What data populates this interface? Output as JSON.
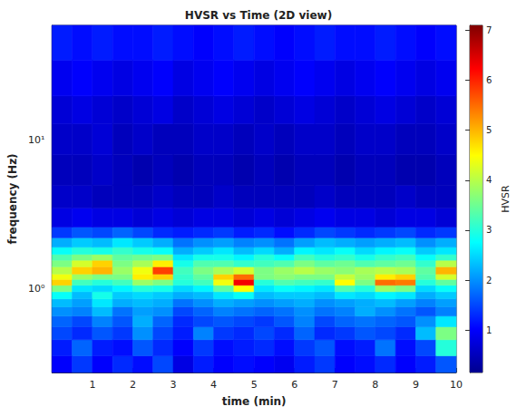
{
  "chart_data": {
    "type": "heatmap",
    "title": "HVSR vs Time (2D view)",
    "x_label": "time (min)",
    "y_label": "frequency (Hz)",
    "xlim": [
      0,
      10
    ],
    "xticks": [
      1,
      2,
      3,
      4,
      5,
      6,
      7,
      8,
      9,
      10
    ],
    "ylim": [
      0.27,
      60
    ],
    "yticks": [
      {
        "value": 1,
        "label": "10⁰"
      },
      {
        "value": 10,
        "label": "10¹"
      }
    ],
    "log": "y",
    "grid": false,
    "time_edges": [
      0,
      0.5,
      1,
      1.5,
      2,
      2.5,
      3,
      3.5,
      4,
      4.5,
      5,
      5.5,
      6,
      6.5,
      7,
      7.5,
      8,
      8.5,
      9,
      9.5,
      10
    ],
    "frequency_edges": [
      0.27,
      0.35,
      0.45,
      0.55,
      0.65,
      0.75,
      0.85,
      0.95,
      1.05,
      1.15,
      1.25,
      1.4,
      1.55,
      1.7,
      1.9,
      2.2,
      2.6,
      3.5,
      5,
      8,
      13,
      20,
      35,
      60
    ],
    "values": [
      [
        1.0,
        1.4,
        1.0,
        1.3,
        1.1,
        1.5,
        0.8,
        1.2,
        1.0,
        1.1,
        1.0,
        0.9,
        1.2,
        1.4,
        1.0,
        1.1,
        1.3,
        1.0,
        1.2,
        1.6
      ],
      [
        1.2,
        1.7,
        1.2,
        1.1,
        1.6,
        1.3,
        1.0,
        1.4,
        1.1,
        1.2,
        1.3,
        1.1,
        1.4,
        1.6,
        1.1,
        1.2,
        1.8,
        1.1,
        1.5,
        3.0
      ],
      [
        1.5,
        1.3,
        1.6,
        1.4,
        2.0,
        1.5,
        1.2,
        1.9,
        1.4,
        1.3,
        1.5,
        1.3,
        1.7,
        1.3,
        1.4,
        1.6,
        1.5,
        1.3,
        2.3,
        3.6
      ],
      [
        1.7,
        1.5,
        1.9,
        1.6,
        2.2,
        1.7,
        1.3,
        1.5,
        1.6,
        1.5,
        1.4,
        1.6,
        1.9,
        1.5,
        1.7,
        1.8,
        1.7,
        1.6,
        2.0,
        2.6
      ],
      [
        2.0,
        1.9,
        2.3,
        1.8,
        2.1,
        2.0,
        1.5,
        1.7,
        1.9,
        1.8,
        1.7,
        1.8,
        2.0,
        1.8,
        1.9,
        2.2,
        2.0,
        1.8,
        1.6,
        1.9
      ],
      [
        2.3,
        2.1,
        2.6,
        2.2,
        2.3,
        2.2,
        1.8,
        2.0,
        2.2,
        2.1,
        2.0,
        2.1,
        2.2,
        2.0,
        2.1,
        2.2,
        2.3,
        2.1,
        1.9,
        2.1
      ],
      [
        2.8,
        2.3,
        2.9,
        2.4,
        2.5,
        2.4,
        2.2,
        2.3,
        2.6,
        2.8,
        2.3,
        2.4,
        2.4,
        2.3,
        2.6,
        2.5,
        2.7,
        2.6,
        2.2,
        2.4
      ],
      [
        3.6,
        2.6,
        2.5,
        2.7,
        3.0,
        2.9,
        2.5,
        2.7,
        3.4,
        4.5,
        2.6,
        2.8,
        2.7,
        2.6,
        3.3,
        3.0,
        3.8,
        3.6,
        2.5,
        2.8
      ],
      [
        4.8,
        3.2,
        3.0,
        3.2,
        3.8,
        3.6,
        3.0,
        3.2,
        4.4,
        6.3,
        3.0,
        3.3,
        3.2,
        3.1,
        4.5,
        3.6,
        5.5,
        5.4,
        3.0,
        3.4
      ],
      [
        4.4,
        3.8,
        3.6,
        3.6,
        4.6,
        4.8,
        3.1,
        3.4,
        4.8,
        5.5,
        3.6,
        3.7,
        3.6,
        3.6,
        4.1,
        3.8,
        4.6,
        4.8,
        3.3,
        4.2
      ],
      [
        4.0,
        4.8,
        5.0,
        3.8,
        4.4,
        5.8,
        3.2,
        3.6,
        3.9,
        4.2,
        3.6,
        3.8,
        4.0,
        3.8,
        3.7,
        3.9,
        4.0,
        3.9,
        3.4,
        5.0
      ],
      [
        3.6,
        4.2,
        4.8,
        3.6,
        3.9,
        4.6,
        2.9,
        3.3,
        3.3,
        3.1,
        3.2,
        3.3,
        3.6,
        3.4,
        3.5,
        3.3,
        3.4,
        3.5,
        3.1,
        4.0
      ],
      [
        3.3,
        3.6,
        3.8,
        3.4,
        3.5,
        3.6,
        2.6,
        2.9,
        2.9,
        2.7,
        3.0,
        2.8,
        3.2,
        3.0,
        3.1,
        2.9,
        3.1,
        3.2,
        2.8,
        3.1
      ],
      [
        2.8,
        3.0,
        2.9,
        3.1,
        2.9,
        2.8,
        2.2,
        2.4,
        2.6,
        2.3,
        2.5,
        2.2,
        2.7,
        2.6,
        2.8,
        2.5,
        2.7,
        2.8,
        2.4,
        2.6
      ],
      [
        2.2,
        2.4,
        2.3,
        2.6,
        2.4,
        2.2,
        1.8,
        2.0,
        2.1,
        1.9,
        2.0,
        1.8,
        2.1,
        2.3,
        2.2,
        2.1,
        2.2,
        2.3,
        2.0,
        2.2
      ],
      [
        1.4,
        1.6,
        1.5,
        1.7,
        1.5,
        1.3,
        1.2,
        1.3,
        1.4,
        1.2,
        1.3,
        1.1,
        1.3,
        1.5,
        1.4,
        1.3,
        1.4,
        1.5,
        1.3,
        1.4
      ],
      [
        0.8,
        0.9,
        0.8,
        0.8,
        0.7,
        0.8,
        0.7,
        0.8,
        0.8,
        0.7,
        0.8,
        0.7,
        0.8,
        0.9,
        0.8,
        0.8,
        0.7,
        0.8,
        0.8,
        0.7
      ],
      [
        0.6,
        0.6,
        0.5,
        0.5,
        0.5,
        0.6,
        0.5,
        0.5,
        0.6,
        0.5,
        0.5,
        0.5,
        0.5,
        0.6,
        0.5,
        0.5,
        0.5,
        0.6,
        0.5,
        0.5
      ],
      [
        0.5,
        0.5,
        0.6,
        0.5,
        0.4,
        0.5,
        0.4,
        0.5,
        0.5,
        0.4,
        0.5,
        0.4,
        0.5,
        0.5,
        0.4,
        0.5,
        0.5,
        0.4,
        0.4,
        0.5
      ],
      [
        0.6,
        0.6,
        0.7,
        0.5,
        0.6,
        0.5,
        0.5,
        0.6,
        0.6,
        0.5,
        0.6,
        0.5,
        0.6,
        0.6,
        0.5,
        0.6,
        0.6,
        0.5,
        0.5,
        0.6
      ],
      [
        0.7,
        0.8,
        0.7,
        0.6,
        0.7,
        0.8,
        0.6,
        0.7,
        0.8,
        0.7,
        0.6,
        0.7,
        0.8,
        0.7,
        0.6,
        0.7,
        0.8,
        0.7,
        0.6,
        0.7
      ],
      [
        0.9,
        1.0,
        0.9,
        0.8,
        0.9,
        1.0,
        0.8,
        0.9,
        1.0,
        0.9,
        0.8,
        0.9,
        1.0,
        0.9,
        0.8,
        0.9,
        1.0,
        0.9,
        0.8,
        0.9
      ],
      [
        1.2,
        1.1,
        1.2,
        1.1,
        1.1,
        1.2,
        1.1,
        1.0,
        1.1,
        1.2,
        1.1,
        1.0,
        1.1,
        1.2,
        1.1,
        1.1,
        1.2,
        1.1,
        1.0,
        1.1
      ]
    ],
    "colorbar": {
      "label": "HVSR",
      "range": [
        0.15,
        7.1
      ],
      "ticks": [
        1,
        2,
        3,
        4,
        5,
        6,
        7
      ]
    }
  }
}
